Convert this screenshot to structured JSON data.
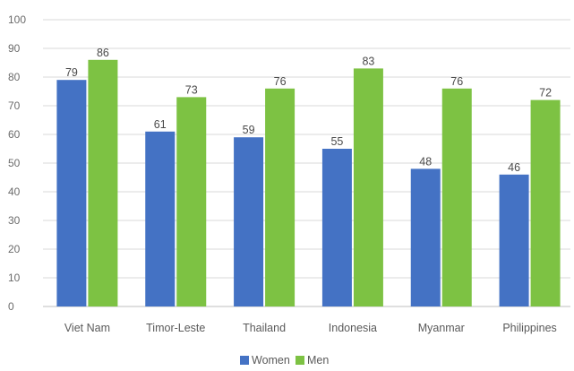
{
  "chart_data": {
    "type": "bar",
    "categories": [
      "Viet Nam",
      "Timor-Leste",
      "Thailand",
      "Indonesia",
      "Myanmar",
      "Philippines"
    ],
    "series": [
      {
        "name": "Women",
        "values": [
          79,
          61,
          59,
          55,
          48,
          46
        ],
        "color": "#4472C4"
      },
      {
        "name": "Men",
        "values": [
          86,
          73,
          76,
          83,
          76,
          72
        ],
        "color": "#7DC243"
      }
    ],
    "title": "",
    "xlabel": "",
    "ylabel": "",
    "ylim": [
      0,
      100
    ],
    "yticks": [
      0,
      10,
      20,
      30,
      40,
      50,
      60,
      70,
      80,
      90,
      100
    ],
    "grid": true,
    "legend_position": "bottom-center",
    "data_labels": true
  }
}
